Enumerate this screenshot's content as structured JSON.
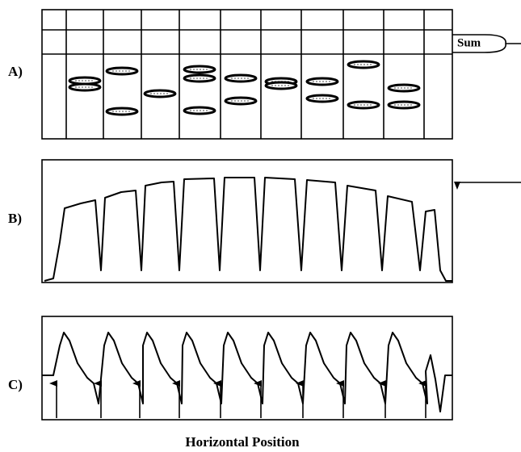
{
  "panels": [
    {
      "label": "A)"
    },
    {
      "label": "B)"
    },
    {
      "label": "C)"
    }
  ],
  "sum_label": "Sum",
  "x_axis_label": "Horizontal Position"
}
